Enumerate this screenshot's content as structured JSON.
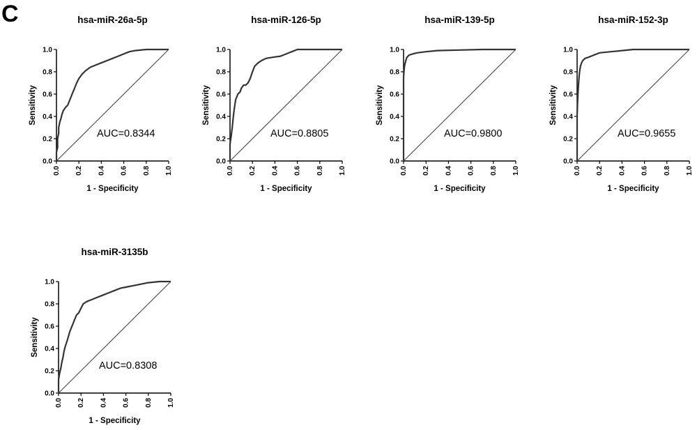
{
  "panel_label": "C",
  "chart_data": [
    {
      "type": "line",
      "title": "hsa-miR-26a-5p",
      "xlabel": "1 - Specificity",
      "ylabel": "Sensitivity",
      "xlim": [
        0,
        1
      ],
      "ylim": [
        0,
        1
      ],
      "x_ticks": [
        "0.0",
        "0.2",
        "0.4",
        "0.6",
        "0.8",
        "1.0"
      ],
      "y_ticks": [
        "0.0",
        "0.2",
        "0.4",
        "0.6",
        "0.8",
        "1.0"
      ],
      "annotation": "AUC=0.8344",
      "series": [
        {
          "x": [
            0,
            0,
            0.01,
            0.01,
            0.02,
            0.02,
            0.03,
            0.04,
            0.05,
            0.06,
            0.08,
            0.1,
            0.12,
            0.14,
            0.16,
            0.18,
            0.2,
            0.23,
            0.26,
            0.3,
            0.35,
            0.4,
            0.45,
            0.5,
            0.55,
            0.6,
            0.65,
            0.7,
            0.8,
            0.9,
            1.0
          ],
          "y": [
            0,
            0.08,
            0.12,
            0.2,
            0.25,
            0.3,
            0.35,
            0.38,
            0.42,
            0.45,
            0.48,
            0.5,
            0.55,
            0.6,
            0.65,
            0.7,
            0.74,
            0.78,
            0.81,
            0.84,
            0.86,
            0.88,
            0.9,
            0.92,
            0.94,
            0.96,
            0.98,
            0.99,
            1.0,
            1.0,
            1.0
          ]
        },
        {
          "x": [
            0,
            1
          ],
          "y": [
            0,
            1
          ]
        }
      ]
    },
    {
      "type": "line",
      "title": "hsa-miR-126-5p",
      "xlabel": "1 - Specificity",
      "ylabel": "Sensitivity",
      "xlim": [
        0,
        1
      ],
      "ylim": [
        0,
        1
      ],
      "x_ticks": [
        "0.0",
        "0.2",
        "0.4",
        "0.6",
        "0.8",
        "1.0"
      ],
      "y_ticks": [
        "0.0",
        "0.2",
        "0.4",
        "0.6",
        "0.8",
        "1.0"
      ],
      "annotation": "AUC=0.8805",
      "series": [
        {
          "x": [
            0,
            0,
            0.01,
            0.02,
            0.03,
            0.04,
            0.05,
            0.07,
            0.09,
            0.1,
            0.12,
            0.14,
            0.16,
            0.18,
            0.2,
            0.22,
            0.25,
            0.28,
            0.32,
            0.38,
            0.45,
            0.5,
            0.55,
            0.6,
            0.7,
            0.8,
            1.0
          ],
          "y": [
            0,
            0.15,
            0.22,
            0.3,
            0.4,
            0.48,
            0.55,
            0.6,
            0.62,
            0.65,
            0.68,
            0.68,
            0.7,
            0.74,
            0.8,
            0.85,
            0.88,
            0.9,
            0.92,
            0.93,
            0.94,
            0.96,
            0.98,
            1.0,
            1.0,
            1.0,
            1.0
          ]
        },
        {
          "x": [
            0,
            1
          ],
          "y": [
            0,
            1
          ]
        }
      ]
    },
    {
      "type": "line",
      "title": "hsa-miR-139-5p",
      "xlabel": "1 - Specificity",
      "ylabel": "Sensitivity",
      "xlim": [
        0,
        1
      ],
      "ylim": [
        0,
        1
      ],
      "x_ticks": [
        "0.0",
        "0.2",
        "0.4",
        "0.6",
        "0.8",
        "1.0"
      ],
      "y_ticks": [
        "0.0",
        "0.2",
        "0.4",
        "0.6",
        "0.8",
        "1.0"
      ],
      "annotation": "AUC=0.9800",
      "series": [
        {
          "x": [
            0,
            0,
            0.005,
            0.01,
            0.015,
            0.02,
            0.03,
            0.05,
            0.08,
            0.12,
            0.2,
            0.3,
            0.5,
            0.7,
            1.0
          ],
          "y": [
            0,
            0.75,
            0.82,
            0.86,
            0.88,
            0.9,
            0.93,
            0.95,
            0.96,
            0.97,
            0.98,
            0.99,
            0.995,
            1.0,
            1.0
          ]
        },
        {
          "x": [
            0,
            1
          ],
          "y": [
            0,
            1
          ]
        }
      ]
    },
    {
      "type": "line",
      "title": "hsa-miR-152-3p",
      "xlabel": "1 - Specificity",
      "ylabel": "Sensitivity",
      "xlim": [
        0,
        1
      ],
      "ylim": [
        0,
        1
      ],
      "x_ticks": [
        "0.0",
        "0.2",
        "0.4",
        "0.6",
        "0.8",
        "1.0"
      ],
      "y_ticks": [
        "0.0",
        "0.2",
        "0.4",
        "0.6",
        "0.8",
        "1.0"
      ],
      "annotation": "AUC=0.9655",
      "series": [
        {
          "x": [
            0,
            0,
            0.005,
            0.01,
            0.015,
            0.02,
            0.025,
            0.03,
            0.04,
            0.05,
            0.07,
            0.1,
            0.15,
            0.2,
            0.3,
            0.4,
            0.5,
            0.6,
            1.0
          ],
          "y": [
            0,
            0.4,
            0.55,
            0.65,
            0.72,
            0.78,
            0.82,
            0.85,
            0.88,
            0.9,
            0.92,
            0.93,
            0.95,
            0.97,
            0.98,
            0.99,
            1.0,
            1.0,
            1.0
          ]
        },
        {
          "x": [
            0,
            1
          ],
          "y": [
            0,
            1
          ]
        }
      ]
    },
    {
      "type": "line",
      "title": "hsa-miR-3135b",
      "xlabel": "1 - Specificity",
      "ylabel": "Sensitivity",
      "xlim": [
        0,
        1
      ],
      "ylim": [
        0,
        1
      ],
      "x_ticks": [
        "0.0",
        "0.2",
        "0.4",
        "0.6",
        "0.8",
        "1.0"
      ],
      "y_ticks": [
        "0.0",
        "0.2",
        "0.4",
        "0.6",
        "0.8",
        "1.0"
      ],
      "annotation": "AUC=0.8308",
      "series": [
        {
          "x": [
            0,
            0,
            0.01,
            0.02,
            0.03,
            0.04,
            0.05,
            0.06,
            0.08,
            0.1,
            0.12,
            0.14,
            0.16,
            0.18,
            0.2,
            0.22,
            0.25,
            0.3,
            0.35,
            0.4,
            0.45,
            0.5,
            0.55,
            0.6,
            0.7,
            0.8,
            0.9,
            1.0
          ],
          "y": [
            0,
            0.12,
            0.18,
            0.22,
            0.28,
            0.32,
            0.38,
            0.42,
            0.48,
            0.55,
            0.6,
            0.65,
            0.7,
            0.72,
            0.76,
            0.8,
            0.82,
            0.84,
            0.86,
            0.88,
            0.9,
            0.92,
            0.94,
            0.95,
            0.97,
            0.99,
            1.0,
            1.0
          ]
        },
        {
          "x": [
            0,
            1
          ],
          "y": [
            0,
            1
          ]
        }
      ]
    }
  ]
}
